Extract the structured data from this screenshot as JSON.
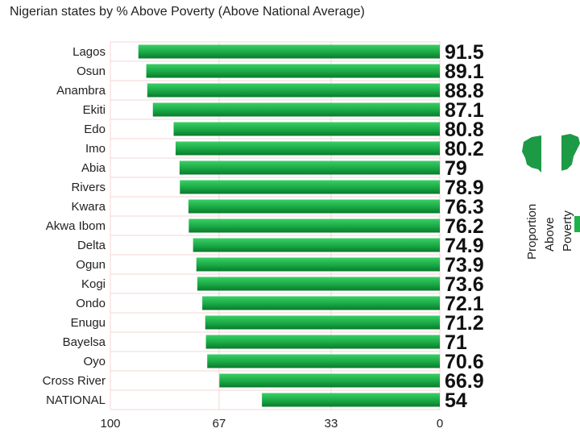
{
  "chart_data": {
    "type": "bar",
    "orientation": "horizontal",
    "title": "Nigerian states by % Above Poverty (Above National Average)",
    "categories": [
      "Lagos",
      "Osun",
      "Anambra",
      "Ekiti",
      "Edo",
      "Imo",
      "Abia",
      "Rivers",
      "Kwara",
      "Akwa Ibom",
      "Delta",
      "Ogun",
      "Kogi",
      "Ondo",
      "Enugu",
      "Bayelsa",
      "Oyo",
      "Cross River",
      "NATIONAL"
    ],
    "values": [
      91.5,
      89.1,
      88.8,
      87.1,
      80.8,
      80.2,
      79,
      78.9,
      76.3,
      76.2,
      74.9,
      73.9,
      73.6,
      72.1,
      71.2,
      71,
      70.6,
      66.9,
      54
    ],
    "value_labels": [
      "91.5",
      "89.1",
      "88.8",
      "87.1",
      "80.8",
      "80.2",
      "79",
      "78.9",
      "76.3",
      "76.2",
      "74.9",
      "73.9",
      "73.6",
      "72.1",
      "71.2",
      "71",
      "70.6",
      "66.9",
      "54"
    ],
    "xlim": [
      100,
      0
    ],
    "x_ticks": [
      "100",
      "67",
      "33",
      "0"
    ],
    "x_tick_values": [
      100,
      67,
      33,
      0
    ],
    "legend": {
      "title": [
        "Proportion",
        "Above",
        "Poverty"
      ],
      "position": "right"
    },
    "grid": true,
    "colors": {
      "bar_light": "#2cc35a",
      "bar_dark": "#0a7a2c",
      "grid": "#f6d6d6",
      "flag_green": "#1d9a45"
    }
  }
}
